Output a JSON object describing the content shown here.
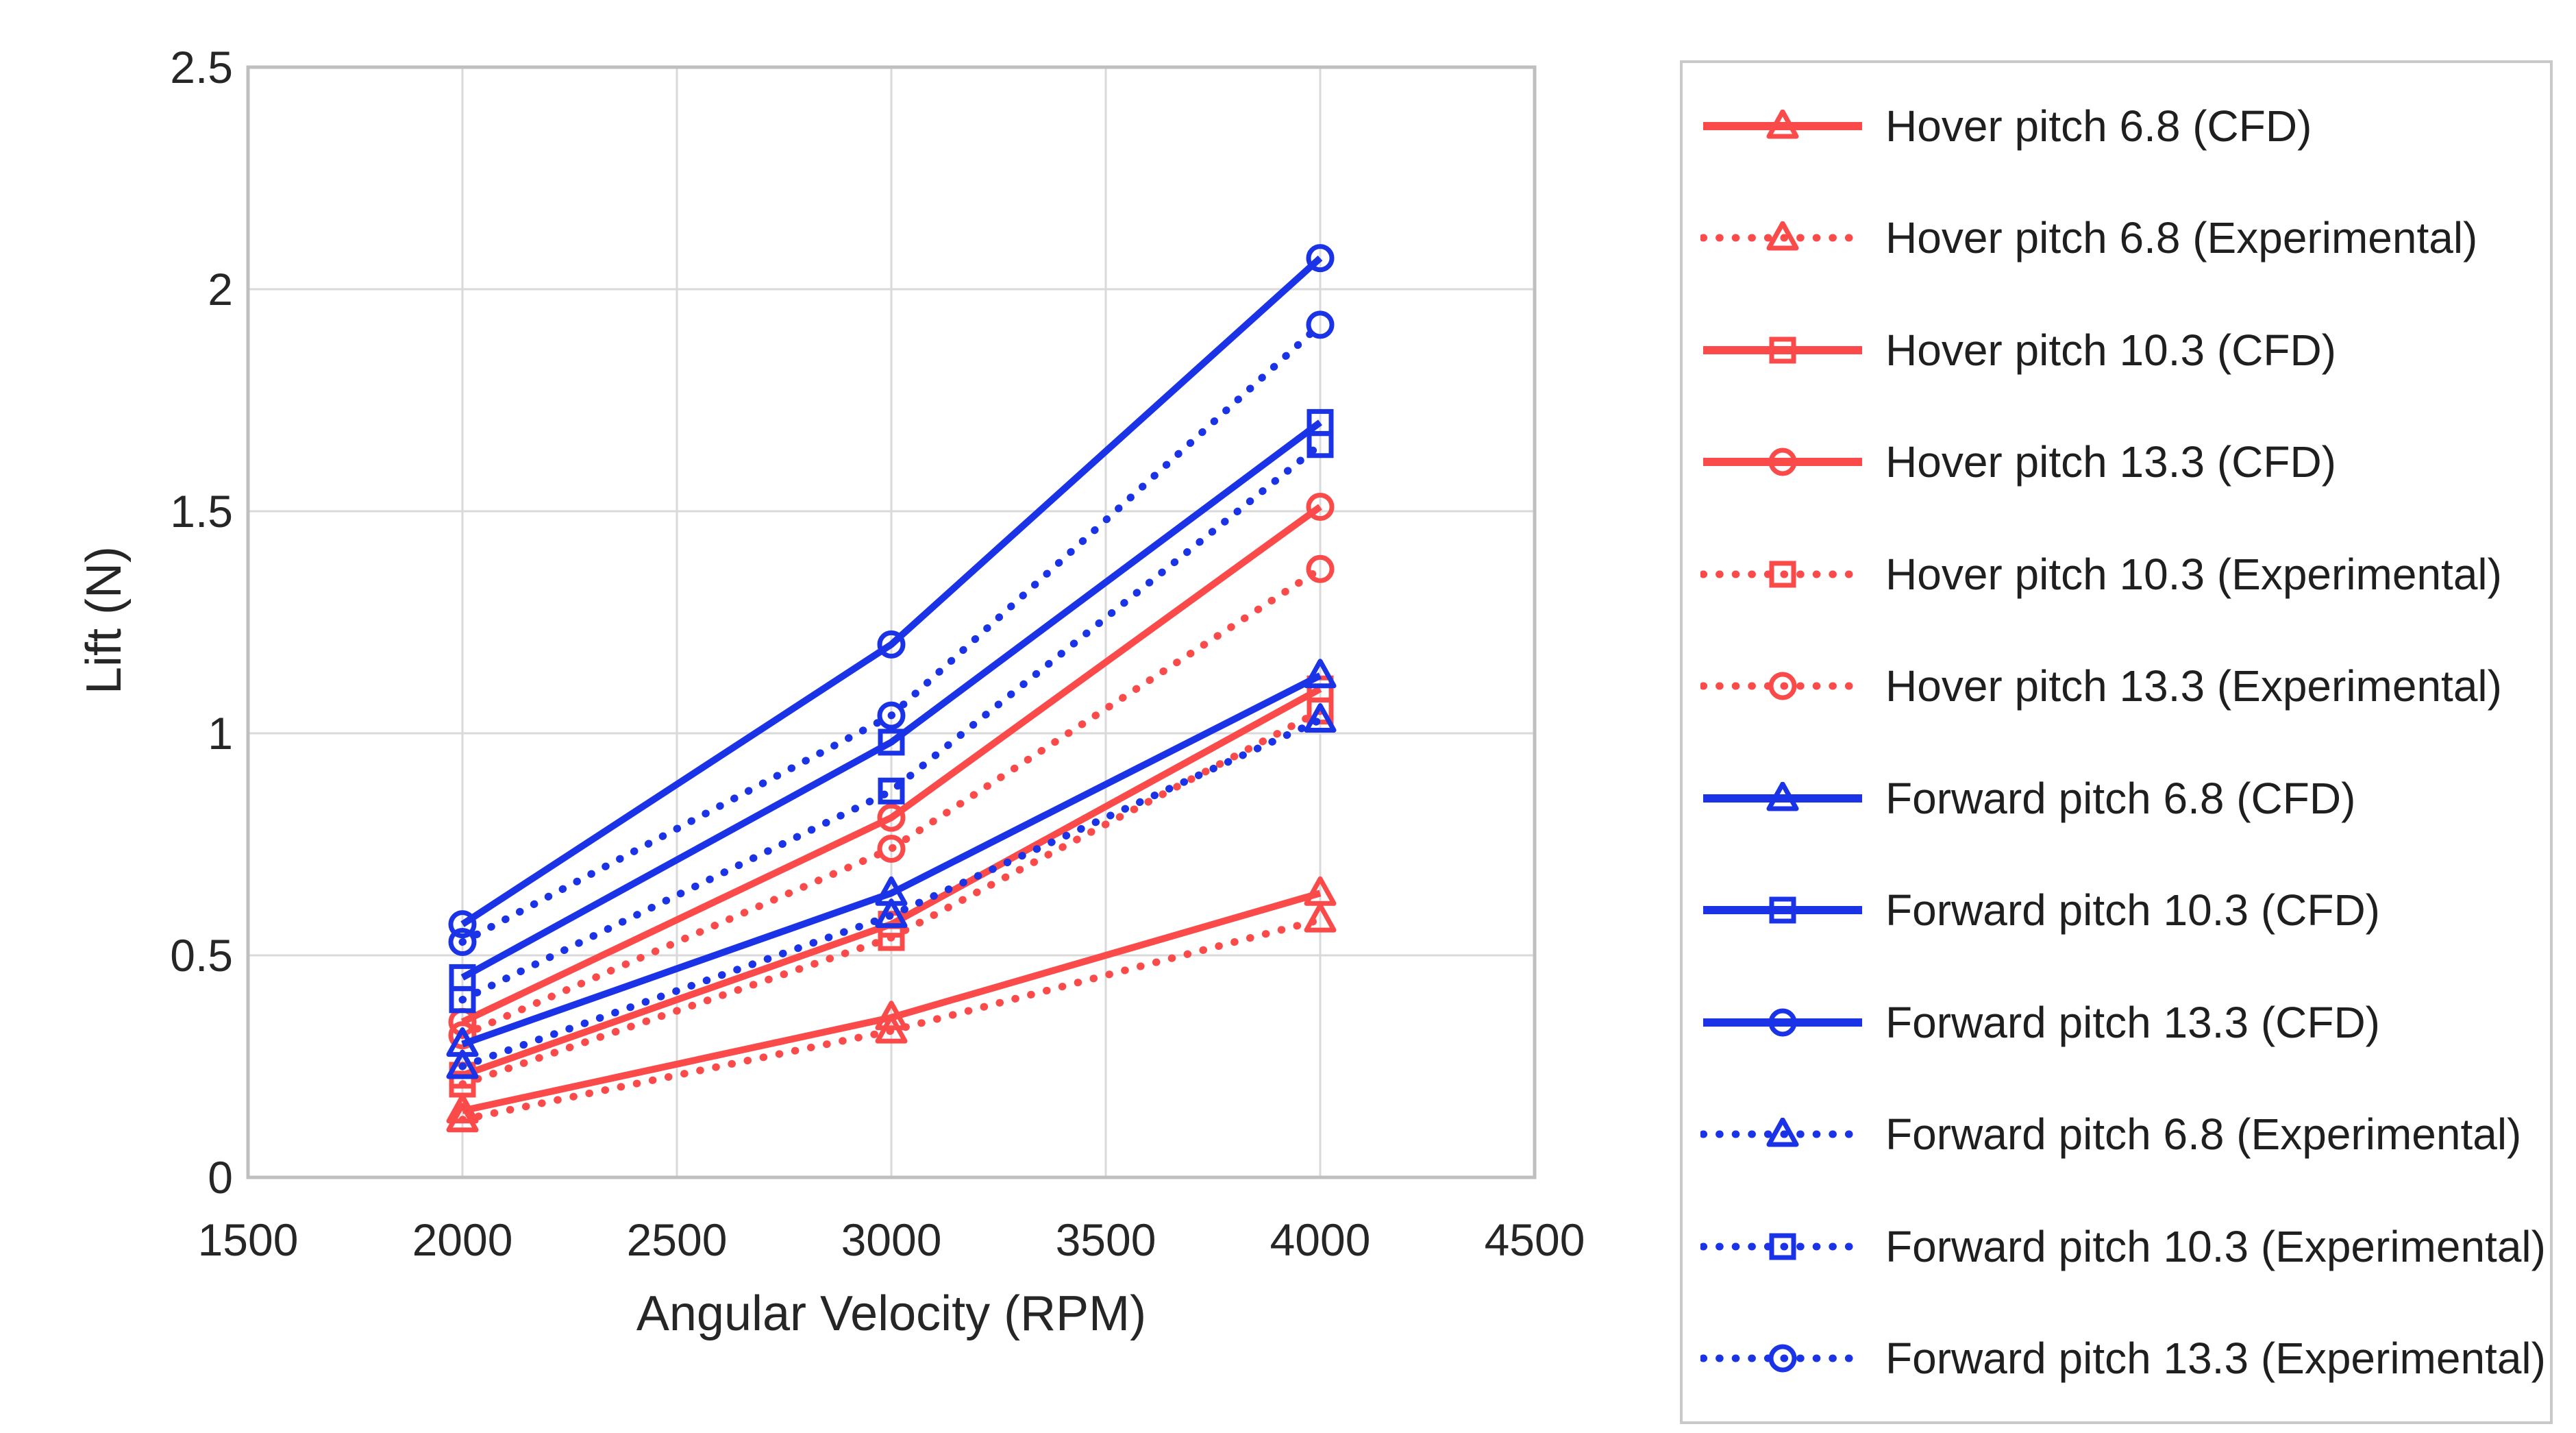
{
  "chart_data": {
    "type": "line",
    "title": "",
    "xlabel": "Angular Velocity (RPM)",
    "ylabel": "Lift (N)",
    "x": [
      2000,
      3000,
      4000
    ],
    "xlim": [
      1500,
      4500
    ],
    "ylim": [
      0,
      2.5
    ],
    "xticks": [
      "1500",
      "2000",
      "2500",
      "3000",
      "3500",
      "4000",
      "4500"
    ],
    "yticks": [
      "0",
      "0.5",
      "1",
      "1.5",
      "2",
      "2.5"
    ],
    "grid": true,
    "legend_position": "right-outside",
    "colors": {
      "hover_red": "#fa4a4a",
      "forward_blue": "#1b33e6",
      "grid": "#d9d9d9",
      "frame": "#bfbfbf",
      "text": "#262626"
    },
    "series": [
      {
        "name": "Hover pitch 6.8 (CFD)",
        "color": "#fa4a4a",
        "line": "solid",
        "marker": "triangle",
        "values": [
          0.15,
          0.36,
          0.64
        ]
      },
      {
        "name": "Hover pitch 6.8 (Experimental)",
        "color": "#fa4a4a",
        "line": "dotted",
        "marker": "triangle",
        "values": [
          0.13,
          0.33,
          0.58
        ]
      },
      {
        "name": "Hover pitch 10.3 (CFD)",
        "color": "#fa4a4a",
        "line": "solid",
        "marker": "square",
        "values": [
          0.23,
          0.57,
          1.1
        ]
      },
      {
        "name": "Hover pitch 13.3 (CFD)",
        "color": "#fa4a4a",
        "line": "solid",
        "marker": "circle",
        "values": [
          0.35,
          0.81,
          1.51
        ]
      },
      {
        "name": "Hover pitch 10.3 (Experimental)",
        "color": "#fa4a4a",
        "line": "dotted",
        "marker": "square",
        "values": [
          0.21,
          0.54,
          1.05
        ]
      },
      {
        "name": "Hover pitch 13.3 (Experimental)",
        "color": "#fa4a4a",
        "line": "dotted",
        "marker": "circle",
        "values": [
          0.32,
          0.74,
          1.37
        ]
      },
      {
        "name": "Forward pitch 6.8 (CFD)",
        "color": "#1b33e6",
        "line": "solid",
        "marker": "triangle",
        "values": [
          0.3,
          0.64,
          1.13
        ]
      },
      {
        "name": "Forward pitch 10.3 (CFD)",
        "color": "#1b33e6",
        "line": "solid",
        "marker": "square",
        "values": [
          0.45,
          0.98,
          1.7
        ]
      },
      {
        "name": "Forward pitch 13.3 (CFD)",
        "color": "#1b33e6",
        "line": "solid",
        "marker": "circle",
        "values": [
          0.57,
          1.2,
          2.07
        ]
      },
      {
        "name": "Forward pitch 6.8 (Experimental)",
        "color": "#1b33e6",
        "line": "dotted",
        "marker": "triangle",
        "values": [
          0.25,
          0.59,
          1.03
        ]
      },
      {
        "name": "Forward pitch 10.3 (Experimental)",
        "color": "#1b33e6",
        "line": "dotted",
        "marker": "square",
        "values": [
          0.4,
          0.87,
          1.65
        ]
      },
      {
        "name": "Forward pitch 13.3 (Experimental)",
        "color": "#1b33e6",
        "line": "dotted",
        "marker": "circle",
        "values": [
          0.53,
          1.04,
          1.92
        ]
      }
    ]
  }
}
